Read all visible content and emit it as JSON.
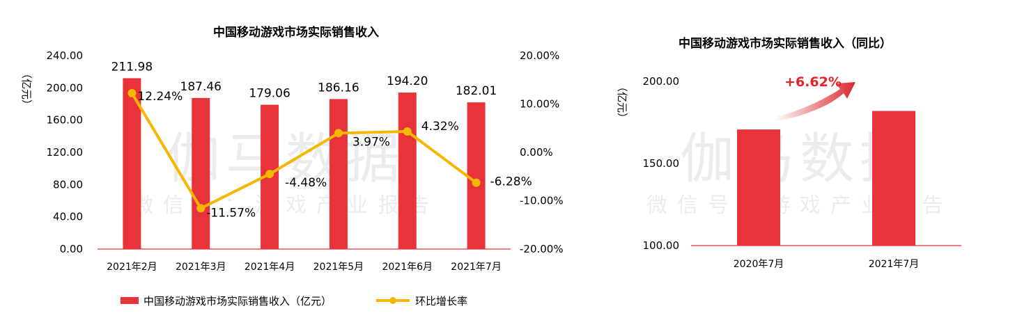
{
  "watermark": {
    "brand": "伽马数据",
    "sub": "微信号：游戏产业报告"
  },
  "chart_data": [
    {
      "type": "bar",
      "title": "中国移动游戏市场实际销售收入",
      "ylabel": "（亿元）",
      "categories": [
        "2021年2月",
        "2021年3月",
        "2021年4月",
        "2021年5月",
        "2021年6月",
        "2021年7月"
      ],
      "ylim": [
        0,
        240
      ],
      "y_ticks": [
        "0.00",
        "40.00",
        "80.00",
        "120.00",
        "160.00",
        "200.00",
        "240.00"
      ],
      "y2lim": [
        -20,
        20
      ],
      "y2_ticks": [
        "-20.00%",
        "-10.00%",
        "0.00%",
        "10.00%",
        "20.00%"
      ],
      "series": [
        {
          "name": "中国移动游戏市场实际销售收入（亿元）",
          "type": "bar",
          "color": "#e8333a",
          "values": [
            211.98,
            187.46,
            179.06,
            186.16,
            194.2,
            182.01
          ],
          "labels": [
            "211.98",
            "187.46",
            "179.06",
            "186.16",
            "194.20",
            "182.01"
          ]
        },
        {
          "name": "环比增长率",
          "type": "line",
          "axis": "right",
          "color": "#f5b800",
          "values": [
            12.24,
            -11.57,
            -4.48,
            3.97,
            4.32,
            -6.28
          ],
          "labels": [
            "12.24%",
            "-11.57%",
            "-4.48%",
            "3.97%",
            "4.32%",
            "-6.28%"
          ]
        }
      ],
      "legend": "bottom"
    },
    {
      "type": "bar",
      "title": "中国移动游戏市场实际销售收入（同比）",
      "ylabel": "（亿元）",
      "categories": [
        "2020年7月",
        "2021年7月"
      ],
      "ylim": [
        100,
        200
      ],
      "y_ticks": [
        "100.00",
        "150.00",
        "200.00"
      ],
      "series": [
        {
          "color": "#e8333a",
          "values": [
            170.7,
            182.01
          ]
        }
      ],
      "annotation": "+6.62%"
    }
  ]
}
